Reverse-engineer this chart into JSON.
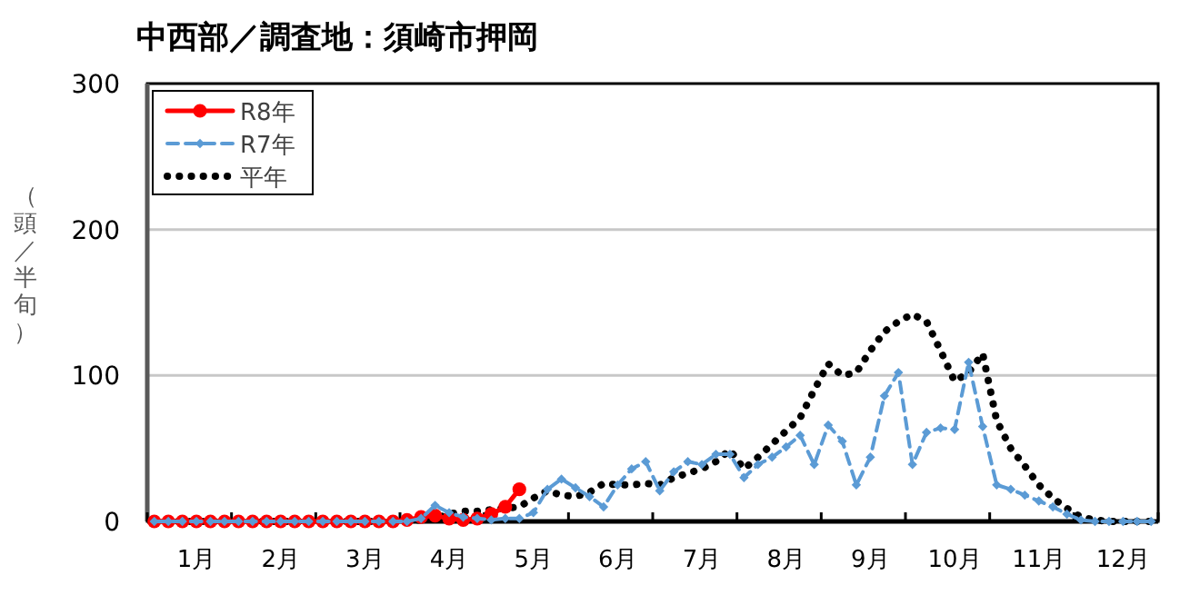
{
  "chart_data": {
    "type": "line",
    "title": "中西部／調査地：須崎市押岡",
    "ylabel": "（頭／半旬）",
    "ylim": [
      0,
      300
    ],
    "yticks": [
      0,
      100,
      200,
      300
    ],
    "grid": "y",
    "legend": "top left",
    "categories": [
      null,
      null,
      null,
      "1月",
      null,
      null,
      null,
      null,
      null,
      "2月",
      null,
      null,
      null,
      null,
      null,
      "3月",
      null,
      null,
      null,
      null,
      null,
      "4月",
      null,
      null,
      null,
      null,
      null,
      "5月",
      null,
      null,
      null,
      null,
      null,
      "6月",
      null,
      null,
      null,
      null,
      null,
      "7月",
      null,
      null,
      null,
      null,
      null,
      "8月",
      null,
      null,
      null,
      null,
      null,
      "9月",
      null,
      null,
      null,
      null,
      null,
      "10月",
      null,
      null,
      null,
      null,
      null,
      "11月",
      null,
      null,
      null,
      null,
      null,
      "12月",
      null,
      null
    ],
    "series": [
      {
        "name": "R8年",
        "color": "#ff0000",
        "line_style": "solid",
        "marker": "circle",
        "values": [
          0,
          0,
          0,
          0,
          0,
          0,
          0,
          0,
          0,
          0,
          0,
          0,
          0,
          0,
          0,
          0,
          0,
          0,
          1,
          3,
          4,
          2,
          1,
          2,
          5,
          10,
          22,
          null,
          null,
          null,
          null,
          null,
          null,
          null,
          null,
          null,
          null,
          null,
          null,
          null,
          null,
          null,
          null,
          null,
          null,
          null,
          null,
          null,
          null,
          null,
          null,
          null,
          null,
          null,
          null,
          null,
          null,
          null,
          null,
          null,
          null,
          null,
          null,
          null,
          null,
          null,
          null,
          null,
          null,
          null,
          null,
          null
        ]
      },
      {
        "name": "R7年",
        "color": "#5b9bd5",
        "line_style": "dashed",
        "marker": "diamond",
        "values": [
          0,
          0,
          0,
          0,
          0,
          0,
          0,
          0,
          0,
          0,
          0,
          0,
          0,
          0,
          0,
          0,
          0,
          0,
          0,
          2,
          11,
          6,
          3,
          2,
          1,
          2,
          2,
          6,
          22,
          29,
          23,
          17,
          10,
          25,
          36,
          41,
          21,
          34,
          41,
          39,
          46,
          46,
          30,
          39,
          44,
          51,
          59,
          39,
          66,
          55,
          25,
          44,
          86,
          102,
          39,
          61,
          64,
          63,
          109,
          65,
          25,
          22,
          18,
          14,
          10,
          5,
          1,
          0,
          0,
          0,
          0,
          0
        ]
      },
      {
        "name": "平年",
        "color": "#000000",
        "line_style": "dotted",
        "marker": "none",
        "values": [
          0,
          0,
          0,
          0,
          0,
          0,
          0,
          0,
          0,
          0,
          0,
          0,
          0,
          0,
          0,
          0,
          0,
          0,
          1,
          1,
          2,
          5,
          7,
          7,
          8,
          9,
          10,
          16,
          21,
          18,
          17,
          20,
          26,
          25,
          25,
          26,
          25,
          30,
          33,
          36,
          41,
          49,
          36,
          44,
          53,
          62,
          71,
          90,
          108,
          100,
          102,
          117,
          130,
          137,
          142,
          137,
          117,
          96,
          102,
          115,
          69,
          50,
          38,
          25,
          16,
          9,
          3,
          1,
          0,
          0,
          0,
          0
        ]
      }
    ]
  }
}
